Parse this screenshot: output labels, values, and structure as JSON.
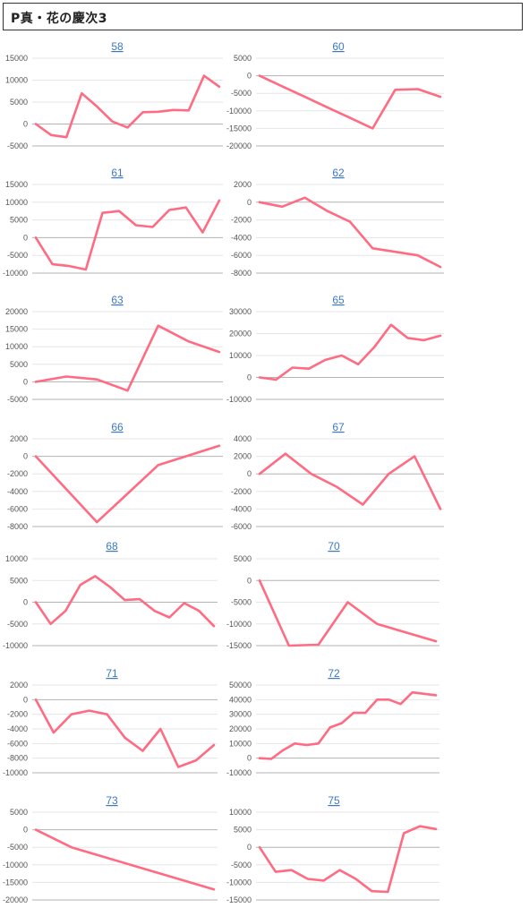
{
  "header": {
    "title": "P真・花の慶次3"
  },
  "colors": {
    "line": "#ff6b82",
    "title_link": "#3b78c4",
    "grid": "#e6e6e6",
    "zero_line": "#b3b3b3"
  },
  "chart_data": [
    {
      "type": "line",
      "title": "58",
      "yticks": [
        15000,
        10000,
        5000,
        0,
        -5000
      ],
      "values": [
        0,
        -2500,
        -3000,
        7000,
        4000,
        600,
        -800,
        2700,
        2800,
        3200,
        3100,
        11000,
        8500
      ]
    },
    {
      "type": "line",
      "title": "60",
      "yticks": [
        5000,
        0,
        -5000,
        -10000,
        -15000,
        -20000
      ],
      "values": [
        0,
        -3000,
        -6000,
        -9000,
        -12000,
        -15000,
        -4000,
        -3800,
        -6000
      ]
    },
    {
      "type": "line",
      "title": "61",
      "yticks": [
        15000,
        10000,
        5000,
        0,
        -5000,
        -10000
      ],
      "values": [
        0,
        -7500,
        -8000,
        -9000,
        7000,
        7500,
        3500,
        3000,
        7800,
        8500,
        1500,
        10500
      ]
    },
    {
      "type": "line",
      "title": "62",
      "yticks": [
        2000,
        0,
        -2000,
        -4000,
        -6000,
        -8000
      ],
      "values": [
        0,
        -500,
        500,
        -1000,
        -2200,
        -5200,
        -5600,
        -6000,
        -7300
      ]
    },
    {
      "type": "line",
      "title": "63",
      "yticks": [
        20000,
        15000,
        10000,
        5000,
        0,
        -5000
      ],
      "values": [
        0,
        1500,
        700,
        -2500,
        16000,
        11500,
        8500
      ]
    },
    {
      "type": "line",
      "title": "65",
      "yticks": [
        30000,
        20000,
        10000,
        0,
        -10000
      ],
      "values": [
        0,
        -1000,
        4500,
        4000,
        8000,
        10000,
        6000,
        14000,
        24000,
        18000,
        17000,
        19000
      ]
    },
    {
      "type": "line",
      "title": "66",
      "yticks": [
        2000,
        0,
        -2000,
        -4000,
        -6000,
        -8000
      ],
      "values": [
        0,
        -7500,
        -1000,
        1200
      ]
    },
    {
      "type": "line",
      "title": "67",
      "yticks": [
        4000,
        2000,
        0,
        -2000,
        -4000,
        -6000
      ],
      "values": [
        0,
        2300,
        0,
        -1500,
        -3500,
        0,
        2000,
        -4000
      ]
    },
    {
      "type": "line",
      "title": "68",
      "yticks": [
        10000,
        5000,
        0,
        -5000,
        -10000
      ],
      "values": [
        0,
        -5000,
        -2000,
        4000,
        6000,
        3500,
        500,
        700,
        -2000,
        -3500,
        -200,
        -2000,
        -5500
      ]
    },
    {
      "type": "line",
      "title": "70",
      "yticks": [
        5000,
        0,
        -5000,
        -10000,
        -15000
      ],
      "values": [
        0,
        -15000,
        -14800,
        -5000,
        -10000,
        -12000,
        -14000
      ]
    },
    {
      "type": "line",
      "title": "71",
      "yticks": [
        2000,
        0,
        -2000,
        -4000,
        -6000,
        -8000,
        -10000
      ],
      "values": [
        0,
        -4500,
        -2000,
        -1500,
        -2000,
        -5200,
        -7000,
        -4000,
        -9200,
        -8300,
        -6200
      ]
    },
    {
      "type": "line",
      "title": "72",
      "yticks": [
        50000,
        40000,
        30000,
        20000,
        10000,
        0,
        -10000
      ],
      "values": [
        0,
        -500,
        5500,
        10000,
        9000,
        10000,
        21000,
        24000,
        31000,
        31000,
        40000,
        40000,
        37000,
        45000,
        44000,
        43000
      ]
    },
    {
      "type": "line",
      "title": "73",
      "yticks": [
        5000,
        0,
        -5000,
        -10000,
        -15000,
        -20000
      ],
      "values": [
        0,
        -5000,
        -8000,
        -11000,
        -14000,
        -17000
      ]
    },
    {
      "type": "line",
      "title": "75",
      "yticks": [
        10000,
        5000,
        0,
        -5000,
        -10000,
        -15000
      ],
      "values": [
        0,
        -7000,
        -6500,
        -9000,
        -9500,
        -6500,
        -9000,
        -12500,
        -12700,
        4000,
        6000,
        5200
      ]
    }
  ]
}
